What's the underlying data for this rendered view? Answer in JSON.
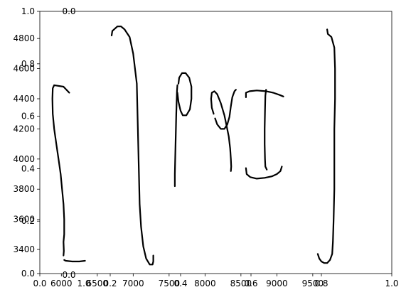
{
  "chart_data": [
    {
      "type": "line",
      "description_role": "overlay-axes-unit",
      "xlim": [
        0.0,
        1.0
      ],
      "ylim": [
        0.0,
        1.0
      ],
      "xticks": [
        0.0,
        0.2,
        0.4,
        0.6,
        0.8,
        1.0
      ],
      "xtick_labels": [
        "0.0",
        "0.2",
        "0.4",
        "0.6",
        "0.8",
        "1.0"
      ],
      "yticks": [
        0.0,
        0.2,
        0.4,
        0.6,
        0.8,
        1.0
      ],
      "ytick_labels": [
        "0.0",
        "0.2",
        "0.4",
        "0.6",
        "0.8",
        "1.0"
      ]
    },
    {
      "type": "line",
      "xlim": [
        5700,
        10600
      ],
      "ylim": [
        3240,
        4980
      ],
      "xticks": [
        6000,
        6500,
        7000,
        7500,
        8000,
        8500,
        9000,
        9500
      ],
      "xtick_labels": [
        "6000",
        "6500",
        "7000",
        "7500",
        "8000",
        "8500",
        "9000",
        "9500"
      ],
      "yticks": [
        3400,
        3600,
        3800,
        4000,
        4200,
        4400,
        4600,
        4800
      ],
      "ytick_labels": [
        "3400",
        "3600",
        "3800",
        "4000",
        "4200",
        "4400",
        "4600",
        "4800"
      ],
      "series": [
        {
          "values": [
            [
              6110,
              4440
            ],
            [
              6030,
              4480
            ],
            [
              5900,
              4490
            ],
            [
              5880,
              4470
            ],
            [
              5875,
              4400
            ],
            [
              5880,
              4300
            ],
            [
              5900,
              4200
            ],
            [
              5930,
              4100
            ],
            [
              5960,
              4000
            ],
            [
              5990,
              3900
            ],
            [
              6010,
              3800
            ],
            [
              6030,
              3700
            ],
            [
              6040,
              3600
            ],
            [
              6040,
              3500
            ],
            [
              6030,
              3450
            ],
            [
              6035,
              3390
            ],
            [
              6030,
              3360
            ]
          ]
        },
        {
          "values": [
            [
              6040,
              3330
            ],
            [
              6060,
              3325
            ],
            [
              6150,
              3320
            ],
            [
              6250,
              3320
            ],
            [
              6330,
              3325
            ]
          ]
        },
        {
          "values": [
            [
              6700,
              4820
            ],
            [
              6710,
              4850
            ],
            [
              6780,
              4880
            ],
            [
              6830,
              4880
            ],
            [
              6880,
              4860
            ],
            [
              6950,
              4810
            ],
            [
              7000,
              4700
            ],
            [
              7050,
              4500
            ],
            [
              7060,
              4300
            ],
            [
              7070,
              4100
            ],
            [
              7080,
              3900
            ],
            [
              7090,
              3700
            ],
            [
              7110,
              3550
            ],
            [
              7140,
              3420
            ],
            [
              7180,
              3340
            ],
            [
              7230,
              3300
            ],
            [
              7270,
              3300
            ],
            [
              7280,
              3320
            ],
            [
              7280,
              3360
            ]
          ]
        },
        {
          "values": [
            [
              7580,
              3820
            ],
            [
              7580,
              3900
            ],
            [
              7590,
              4100
            ],
            [
              7600,
              4300
            ],
            [
              7610,
              4450
            ],
            [
              7615,
              4490
            ]
          ]
        },
        {
          "values": [
            [
              7630,
              4500
            ],
            [
              7640,
              4540
            ],
            [
              7680,
              4570
            ],
            [
              7730,
              4570
            ],
            [
              7780,
              4540
            ],
            [
              7810,
              4480
            ],
            [
              7810,
              4400
            ],
            [
              7790,
              4330
            ],
            [
              7740,
              4290
            ],
            [
              7690,
              4290
            ],
            [
              7660,
              4320
            ],
            [
              7630,
              4380
            ],
            [
              7615,
              4440
            ]
          ]
        },
        {
          "values": [
            [
              8120,
              4300
            ],
            [
              8095,
              4340
            ],
            [
              8085,
              4400
            ],
            [
              8095,
              4440
            ],
            [
              8130,
              4450
            ],
            [
              8170,
              4430
            ],
            [
              8220,
              4370
            ],
            [
              8270,
              4290
            ],
            [
              8300,
              4220
            ],
            [
              8330,
              4150
            ],
            [
              8350,
              4070
            ],
            [
              8360,
              4000
            ],
            [
              8365,
              3950
            ],
            [
              8360,
              3920
            ]
          ]
        },
        {
          "values": [
            [
              8140,
              4270
            ],
            [
              8170,
              4230
            ],
            [
              8220,
              4200
            ],
            [
              8270,
              4200
            ],
            [
              8310,
              4230
            ],
            [
              8340,
              4280
            ],
            [
              8360,
              4350
            ],
            [
              8380,
              4410
            ],
            [
              8410,
              4450
            ],
            [
              8430,
              4460
            ]
          ]
        },
        {
          "values": [
            [
              8570,
              4410
            ],
            [
              8570,
              4440
            ],
            [
              8620,
              4450
            ],
            [
              8720,
              4455
            ],
            [
              8850,
              4450
            ],
            [
              8950,
              4440
            ],
            [
              9040,
              4425
            ],
            [
              9090,
              4415
            ]
          ]
        },
        {
          "values": [
            [
              8850,
              4460
            ],
            [
              8840,
              4420
            ],
            [
              8835,
              4320
            ],
            [
              8830,
              4200
            ],
            [
              8830,
              4100
            ],
            [
              8835,
              4000
            ],
            [
              8840,
              3950
            ],
            [
              8860,
              3930
            ]
          ]
        },
        {
          "values": [
            [
              8570,
              3940
            ],
            [
              8580,
              3900
            ],
            [
              8630,
              3880
            ],
            [
              8720,
              3870
            ],
            [
              8830,
              3875
            ],
            [
              8930,
              3885
            ],
            [
              9000,
              3900
            ],
            [
              9050,
              3920
            ],
            [
              9070,
              3950
            ]
          ]
        },
        {
          "values": [
            [
              9700,
              4860
            ],
            [
              9710,
              4830
            ],
            [
              9760,
              4810
            ],
            [
              9800,
              4740
            ],
            [
              9810,
              4600
            ],
            [
              9810,
              4400
            ],
            [
              9800,
              4200
            ],
            [
              9800,
              4000
            ],
            [
              9800,
              3800
            ],
            [
              9790,
              3600
            ],
            [
              9780,
              3450
            ],
            [
              9770,
              3370
            ],
            [
              9740,
              3330
            ],
            [
              9700,
              3310
            ],
            [
              9660,
              3310
            ],
            [
              9620,
              3320
            ],
            [
              9590,
              3340
            ],
            [
              9570,
              3370
            ]
          ]
        }
      ]
    },
    {
      "type": "line",
      "description_role": "overlay-axes-narrow",
      "xlim": [
        0.0,
        1.0
      ],
      "ylim": [
        0.0,
        1.0
      ],
      "xtick_labels": [
        "0.0",
        "1.0"
      ],
      "top_label": "0.0"
    }
  ]
}
